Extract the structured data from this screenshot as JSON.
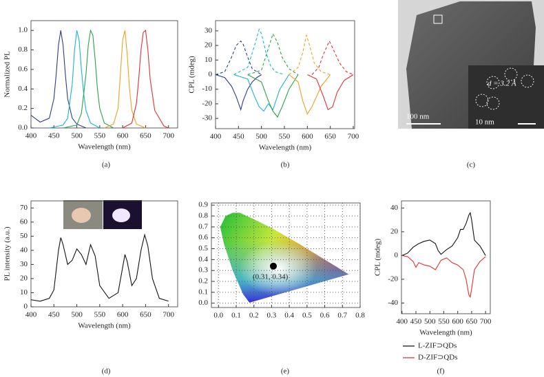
{
  "chart_data": [
    {
      "type": "line",
      "label": "(a)",
      "xlabel": "Wavelength (nm)",
      "ylabel": "Normalized PL",
      "xlim": [
        400,
        720
      ],
      "ylim": [
        0,
        1.1
      ],
      "xticks": [
        400,
        450,
        500,
        550,
        600,
        650,
        700
      ],
      "yticks": [
        {
          "value": 0,
          "label": "0.0"
        },
        0.2,
        0.4,
        0.6,
        0.8,
        {
          "value": 1,
          "label": "1.0"
        }
      ],
      "grid": false,
      "series": [
        {
          "color": "#2b3a8c",
          "x": [
            400,
            420,
            440,
            450,
            455,
            460,
            465,
            470,
            475,
            480,
            490,
            500,
            520
          ],
          "values": [
            0.13,
            0.06,
            0.1,
            0.3,
            0.55,
            0.85,
            1.0,
            0.85,
            0.55,
            0.3,
            0.1,
            0.04,
            0
          ]
        },
        {
          "color": "#17b3d9",
          "x": [
            440,
            470,
            480,
            490,
            495,
            500,
            505,
            510,
            515,
            520,
            530,
            550
          ],
          "values": [
            0,
            0.03,
            0.1,
            0.45,
            0.8,
            1.0,
            0.9,
            0.6,
            0.35,
            0.18,
            0.05,
            0
          ]
        },
        {
          "color": "#2aa147",
          "x": [
            470,
            500,
            510,
            520,
            525,
            530,
            535,
            540,
            545,
            550,
            560,
            580
          ],
          "values": [
            0,
            0.03,
            0.15,
            0.55,
            0.85,
            1.0,
            0.95,
            0.7,
            0.4,
            0.2,
            0.05,
            0
          ]
        },
        {
          "color": "#f0a020",
          "x": [
            560,
            580,
            590,
            595,
            600,
            605,
            610,
            615,
            620,
            630,
            650
          ],
          "values": [
            0,
            0.04,
            0.2,
            0.55,
            0.9,
            1.0,
            0.75,
            0.4,
            0.18,
            0.04,
            0
          ]
        },
        {
          "color": "#e03030",
          "x": [
            600,
            620,
            630,
            635,
            640,
            645,
            650,
            655,
            660,
            670,
            690,
            700
          ],
          "values": [
            0,
            0.05,
            0.25,
            0.5,
            0.8,
            0.98,
            1.0,
            0.8,
            0.5,
            0.18,
            0.02,
            0
          ]
        }
      ]
    },
    {
      "type": "line",
      "label": "(b)",
      "xlabel": "Wavelength (nm)",
      "ylabel": "CPL (mdeg)",
      "xlim": [
        400,
        703
      ],
      "ylim": [
        -37,
        37
      ],
      "xticks": [
        400,
        450,
        500,
        550,
        600,
        650,
        700
      ],
      "yticks": [
        -30,
        -20,
        -10,
        0,
        10,
        20,
        30
      ],
      "grid": false,
      "series": [
        {
          "color": "#2b3a8c",
          "dashed": true,
          "x": [
            400,
            420,
            435,
            445,
            455,
            460,
            470,
            480,
            490,
            500
          ],
          "values": [
            0,
            2,
            12,
            20,
            23,
            21,
            12,
            4,
            2,
            0
          ]
        },
        {
          "color": "#2b3a8c",
          "dashed": false,
          "x": [
            400,
            420,
            435,
            445,
            455,
            460,
            470,
            480,
            490,
            500
          ],
          "values": [
            0,
            -2,
            -8,
            -15,
            -24,
            -18,
            -10,
            -5,
            -2,
            0
          ]
        },
        {
          "color": "#17b3d9",
          "dashed": true,
          "x": [
            440,
            470,
            485,
            495,
            500,
            510,
            520,
            530,
            550
          ],
          "values": [
            0,
            5,
            20,
            31,
            28,
            15,
            6,
            2,
            0
          ]
        },
        {
          "color": "#17b3d9",
          "dashed": false,
          "x": [
            440,
            470,
            485,
            495,
            505,
            515,
            525,
            540,
            560
          ],
          "values": [
            0,
            -3,
            -15,
            -22,
            -25,
            -20,
            -24,
            -10,
            0
          ]
        },
        {
          "color": "#2aa147",
          "dashed": true,
          "x": [
            470,
            500,
            515,
            525,
            535,
            545,
            560,
            580
          ],
          "values": [
            0,
            3,
            18,
            28,
            22,
            12,
            4,
            0
          ]
        },
        {
          "color": "#2aa147",
          "dashed": false,
          "x": [
            470,
            500,
            515,
            525,
            535,
            545,
            560,
            580
          ],
          "values": [
            0,
            -5,
            -18,
            -25,
            -29,
            -22,
            -10,
            0
          ]
        },
        {
          "color": "#f0a020",
          "dashed": true,
          "x": [
            560,
            580,
            590,
            598,
            605,
            615,
            630,
            650
          ],
          "values": [
            0,
            5,
            15,
            27,
            20,
            8,
            2,
            0
          ]
        },
        {
          "color": "#f0a020",
          "dashed": false,
          "x": [
            560,
            580,
            590,
            600,
            610,
            620,
            630,
            650
          ],
          "values": [
            0,
            -5,
            -18,
            -27,
            -22,
            -15,
            -8,
            0
          ]
        },
        {
          "color": "#e03030",
          "dashed": true,
          "x": [
            610,
            625,
            635,
            648,
            660,
            670,
            685,
            700
          ],
          "values": [
            0,
            5,
            14,
            23,
            15,
            8,
            2,
            0
          ]
        },
        {
          "color": "#e03030",
          "dashed": false,
          "x": [
            600,
            620,
            635,
            645,
            655,
            665,
            680,
            700
          ],
          "values": [
            0,
            -3,
            -15,
            -24,
            -22,
            -12,
            -4,
            0
          ]
        }
      ]
    },
    {
      "type": "image",
      "label": "(c)",
      "scale_bar": "100 nm",
      "inset_scale_bar": "10 nm",
      "annotation": "d = 3.2 Å"
    },
    {
      "type": "line",
      "label": "(d)",
      "xlabel": "Wavelength (nm)",
      "ylabel": "PL intensity (a.u.)",
      "xlim": [
        400,
        720
      ],
      "ylim": [
        0,
        75
      ],
      "xticks": [
        400,
        450,
        500,
        550,
        600,
        650,
        700
      ],
      "yticks": [
        0,
        10,
        20,
        30,
        40,
        50,
        60,
        70
      ],
      "grid": false,
      "series": [
        {
          "color": "#111111",
          "x": [
            400,
            420,
            440,
            450,
            460,
            465,
            470,
            480,
            490,
            500,
            510,
            520,
            530,
            540,
            550,
            570,
            590,
            600,
            605,
            610,
            620,
            630,
            640,
            648,
            655,
            665,
            680,
            700
          ],
          "values": [
            5,
            4,
            6,
            12,
            40,
            49,
            44,
            30,
            33,
            41,
            37,
            30,
            44,
            36,
            15,
            6,
            10,
            28,
            37,
            32,
            15,
            20,
            40,
            51,
            43,
            20,
            6,
            4
          ]
        }
      ]
    },
    {
      "type": "scatter",
      "label": "(e)",
      "annotation": "(0.31, 0.34)",
      "xlim": [
        -0.04,
        0.8
      ],
      "ylim": [
        -0.04,
        0.92
      ],
      "xticks": [
        {
          "value": 0,
          "label": "0.0"
        },
        0.1,
        0.2,
        0.3,
        0.4,
        0.5,
        0.6,
        0.7,
        0.8
      ],
      "yticks": [
        {
          "value": 0,
          "label": "0.0"
        },
        0.1,
        0.2,
        0.3,
        0.4,
        0.5,
        0.6,
        0.7,
        0.8,
        0.9
      ],
      "grid": true,
      "series": [
        {
          "color": "#000000",
          "x": [
            0.31
          ],
          "values": [
            0.34
          ]
        }
      ]
    },
    {
      "type": "line",
      "label": "(f)",
      "xlabel": "Wavelength (nm)",
      "ylabel": "CPL (mdeg)",
      "xlim": [
        398,
        717
      ],
      "ylim": [
        -49,
        46
      ],
      "xticks": [
        400,
        450,
        500,
        550,
        600,
        650,
        700
      ],
      "yticks": [
        -40,
        -20,
        0,
        20,
        40
      ],
      "grid": false,
      "legend": "below",
      "series": [
        {
          "name": "L-ZIF⊃QDs",
          "color": "#111111",
          "x": [
            400,
            420,
            440,
            460,
            480,
            500,
            520,
            530,
            540,
            550,
            560,
            580,
            600,
            610,
            620,
            630,
            640,
            645,
            650,
            660,
            680,
            700
          ],
          "values": [
            0,
            2,
            7,
            10,
            12,
            13,
            10,
            4,
            1,
            3,
            5,
            8,
            15,
            22,
            22,
            27,
            34,
            36,
            30,
            13,
            8,
            0
          ]
        },
        {
          "name": "D-ZIF⊃QDs",
          "color": "#e03030",
          "x": [
            400,
            420,
            440,
            450,
            460,
            480,
            500,
            520,
            540,
            560,
            580,
            600,
            620,
            630,
            640,
            645,
            650,
            660,
            680,
            700
          ],
          "values": [
            0,
            -1,
            -5,
            -10,
            -6,
            -8,
            -9,
            -12,
            -4,
            -2,
            -6,
            -8,
            -12,
            -20,
            -33,
            -35,
            -28,
            -12,
            -5,
            -1
          ]
        }
      ]
    }
  ]
}
